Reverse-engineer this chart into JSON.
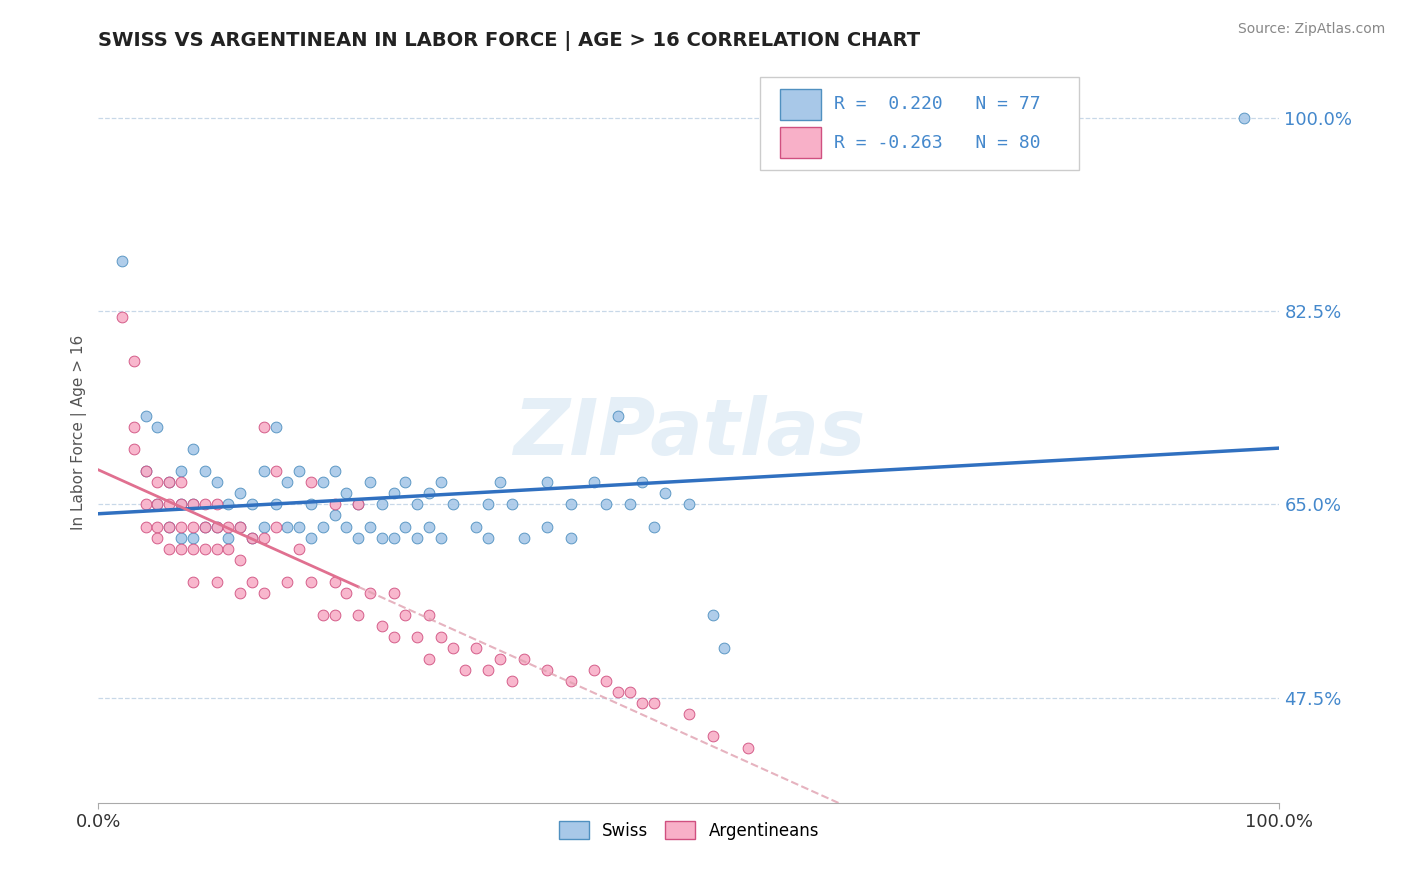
{
  "title": "SWISS VS ARGENTINEAN IN LABOR FORCE | AGE > 16 CORRELATION CHART",
  "source_text": "Source: ZipAtlas.com",
  "ylabel": "In Labor Force | Age > 16",
  "xlim": [
    0.0,
    1.0
  ],
  "ylim": [
    0.4,
    1.05
  ],
  "ytick_positions": [
    0.475,
    0.65,
    0.825,
    1.0
  ],
  "ytick_labels": [
    "47.5%",
    "65.0%",
    "82.5%",
    "100.0%"
  ],
  "xtick_positions": [
    0.0,
    1.0
  ],
  "xtick_labels": [
    "0.0%",
    "100.0%"
  ],
  "watermark": "ZIPatlas",
  "swiss_color": "#a8c8e8",
  "swiss_edge_color": "#5090c0",
  "argentinean_color": "#f8b0c8",
  "argentinean_edge_color": "#d05080",
  "trend_swiss_color": "#3070c0",
  "trend_arg_solid_color": "#e07090",
  "trend_arg_dash_color": "#e0a0b0",
  "background_color": "#ffffff",
  "grid_color": "#c8d8e8",
  "tick_color": "#4488cc",
  "swiss_points": [
    [
      0.02,
      0.87
    ],
    [
      0.04,
      0.68
    ],
    [
      0.04,
      0.73
    ],
    [
      0.05,
      0.65
    ],
    [
      0.05,
      0.72
    ],
    [
      0.06,
      0.67
    ],
    [
      0.06,
      0.63
    ],
    [
      0.07,
      0.68
    ],
    [
      0.07,
      0.65
    ],
    [
      0.07,
      0.62
    ],
    [
      0.08,
      0.7
    ],
    [
      0.08,
      0.65
    ],
    [
      0.08,
      0.62
    ],
    [
      0.09,
      0.68
    ],
    [
      0.09,
      0.63
    ],
    [
      0.1,
      0.67
    ],
    [
      0.1,
      0.63
    ],
    [
      0.11,
      0.65
    ],
    [
      0.11,
      0.62
    ],
    [
      0.12,
      0.66
    ],
    [
      0.12,
      0.63
    ],
    [
      0.13,
      0.65
    ],
    [
      0.13,
      0.62
    ],
    [
      0.14,
      0.68
    ],
    [
      0.14,
      0.63
    ],
    [
      0.15,
      0.72
    ],
    [
      0.15,
      0.65
    ],
    [
      0.16,
      0.67
    ],
    [
      0.16,
      0.63
    ],
    [
      0.17,
      0.68
    ],
    [
      0.17,
      0.63
    ],
    [
      0.18,
      0.65
    ],
    [
      0.18,
      0.62
    ],
    [
      0.19,
      0.67
    ],
    [
      0.19,
      0.63
    ],
    [
      0.2,
      0.68
    ],
    [
      0.2,
      0.64
    ],
    [
      0.21,
      0.66
    ],
    [
      0.21,
      0.63
    ],
    [
      0.22,
      0.65
    ],
    [
      0.22,
      0.62
    ],
    [
      0.23,
      0.67
    ],
    [
      0.23,
      0.63
    ],
    [
      0.24,
      0.65
    ],
    [
      0.24,
      0.62
    ],
    [
      0.25,
      0.66
    ],
    [
      0.25,
      0.62
    ],
    [
      0.26,
      0.67
    ],
    [
      0.26,
      0.63
    ],
    [
      0.27,
      0.65
    ],
    [
      0.27,
      0.62
    ],
    [
      0.28,
      0.66
    ],
    [
      0.28,
      0.63
    ],
    [
      0.29,
      0.67
    ],
    [
      0.29,
      0.62
    ],
    [
      0.3,
      0.65
    ],
    [
      0.32,
      0.63
    ],
    [
      0.33,
      0.65
    ],
    [
      0.33,
      0.62
    ],
    [
      0.34,
      0.67
    ],
    [
      0.35,
      0.65
    ],
    [
      0.36,
      0.62
    ],
    [
      0.38,
      0.67
    ],
    [
      0.38,
      0.63
    ],
    [
      0.4,
      0.65
    ],
    [
      0.4,
      0.62
    ],
    [
      0.42,
      0.67
    ],
    [
      0.43,
      0.65
    ],
    [
      0.44,
      0.73
    ],
    [
      0.45,
      0.65
    ],
    [
      0.46,
      0.67
    ],
    [
      0.47,
      0.63
    ],
    [
      0.48,
      0.66
    ],
    [
      0.5,
      0.65
    ],
    [
      0.52,
      0.55
    ],
    [
      0.53,
      0.52
    ],
    [
      0.97,
      1.0
    ]
  ],
  "argentinean_points": [
    [
      0.02,
      0.82
    ],
    [
      0.03,
      0.78
    ],
    [
      0.03,
      0.72
    ],
    [
      0.03,
      0.7
    ],
    [
      0.04,
      0.68
    ],
    [
      0.04,
      0.65
    ],
    [
      0.04,
      0.63
    ],
    [
      0.05,
      0.67
    ],
    [
      0.05,
      0.65
    ],
    [
      0.05,
      0.63
    ],
    [
      0.05,
      0.62
    ],
    [
      0.06,
      0.67
    ],
    [
      0.06,
      0.65
    ],
    [
      0.06,
      0.63
    ],
    [
      0.06,
      0.61
    ],
    [
      0.07,
      0.67
    ],
    [
      0.07,
      0.65
    ],
    [
      0.07,
      0.63
    ],
    [
      0.07,
      0.61
    ],
    [
      0.08,
      0.65
    ],
    [
      0.08,
      0.63
    ],
    [
      0.08,
      0.61
    ],
    [
      0.08,
      0.58
    ],
    [
      0.09,
      0.65
    ],
    [
      0.09,
      0.63
    ],
    [
      0.09,
      0.61
    ],
    [
      0.1,
      0.65
    ],
    [
      0.1,
      0.63
    ],
    [
      0.1,
      0.61
    ],
    [
      0.1,
      0.58
    ],
    [
      0.11,
      0.63
    ],
    [
      0.11,
      0.61
    ],
    [
      0.12,
      0.63
    ],
    [
      0.12,
      0.6
    ],
    [
      0.12,
      0.57
    ],
    [
      0.13,
      0.62
    ],
    [
      0.13,
      0.58
    ],
    [
      0.14,
      0.62
    ],
    [
      0.14,
      0.57
    ],
    [
      0.15,
      0.63
    ],
    [
      0.16,
      0.58
    ],
    [
      0.17,
      0.61
    ],
    [
      0.18,
      0.58
    ],
    [
      0.19,
      0.55
    ],
    [
      0.2,
      0.58
    ],
    [
      0.2,
      0.55
    ],
    [
      0.21,
      0.57
    ],
    [
      0.22,
      0.55
    ],
    [
      0.23,
      0.57
    ],
    [
      0.24,
      0.54
    ],
    [
      0.25,
      0.57
    ],
    [
      0.25,
      0.53
    ],
    [
      0.26,
      0.55
    ],
    [
      0.27,
      0.53
    ],
    [
      0.28,
      0.55
    ],
    [
      0.28,
      0.51
    ],
    [
      0.29,
      0.53
    ],
    [
      0.3,
      0.52
    ],
    [
      0.31,
      0.5
    ],
    [
      0.32,
      0.52
    ],
    [
      0.33,
      0.5
    ],
    [
      0.34,
      0.51
    ],
    [
      0.35,
      0.49
    ],
    [
      0.36,
      0.51
    ],
    [
      0.38,
      0.5
    ],
    [
      0.4,
      0.49
    ],
    [
      0.42,
      0.5
    ],
    [
      0.43,
      0.49
    ],
    [
      0.44,
      0.48
    ],
    [
      0.45,
      0.48
    ],
    [
      0.46,
      0.47
    ],
    [
      0.47,
      0.47
    ],
    [
      0.5,
      0.46
    ],
    [
      0.52,
      0.44
    ],
    [
      0.55,
      0.43
    ],
    [
      0.14,
      0.72
    ],
    [
      0.15,
      0.68
    ],
    [
      0.18,
      0.67
    ],
    [
      0.2,
      0.65
    ],
    [
      0.22,
      0.65
    ]
  ],
  "legend_text_1": "R =  0.220   N = 77",
  "legend_text_2": "R = -0.263   N = 80"
}
